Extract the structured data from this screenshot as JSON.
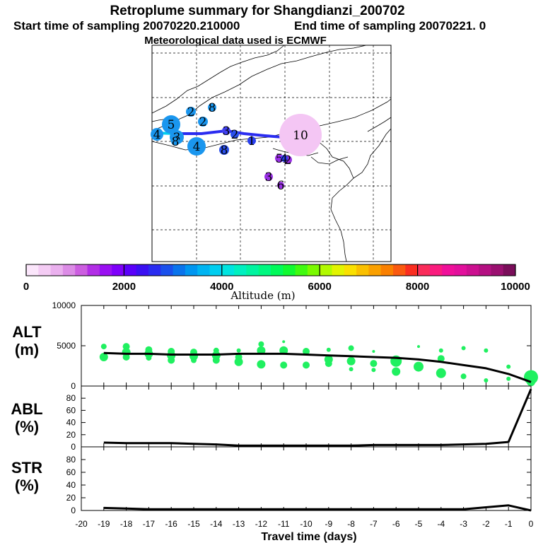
{
  "title": {
    "line1": "Retroplume summary for Shangdianzi_200702",
    "line2_start": "Start time of sampling 20070220.210000",
    "line2_end": "End time of sampling 20070221.     0",
    "line3": "Meteorological data used is ECMWF"
  },
  "colorbar": {
    "label": "Altitude (m)",
    "ticks": [
      "0",
      "2000",
      "4000",
      "6000",
      "8000",
      "10000"
    ],
    "colors": [
      "#fbe6fb",
      "#f4ccf4",
      "#eab0ee",
      "#dc8ce6",
      "#cc5ee0",
      "#b22ee6",
      "#9a10f2",
      "#7e00fa",
      "#5a00fa",
      "#3a10f2",
      "#2a2cf0",
      "#1a50ec",
      "#0a74ec",
      "#0096f0",
      "#00b4f2",
      "#00cef0",
      "#00e4e0",
      "#00f0c0",
      "#00f4a0",
      "#00f880",
      "#00fa5a",
      "#10fa30",
      "#40fa10",
      "#7afa00",
      "#b2fa00",
      "#e2f400",
      "#fae000",
      "#fac000",
      "#faa000",
      "#fa8000",
      "#fa5a10",
      "#fa2e20",
      "#fa2c5a",
      "#fa1c7e",
      "#f0109a",
      "#e2109c",
      "#cc1090",
      "#b41082",
      "#9a1070",
      "#7a0e5a"
    ]
  },
  "map_labels": [
    {
      "text": "5",
      "color": "#1a96ee",
      "r": 13
    },
    {
      "text": "4",
      "color": "#1a96ee",
      "r": 13
    },
    {
      "text": "3",
      "color": "#1a96ee",
      "r": 10
    },
    {
      "text": "8",
      "color": "#1a96ee",
      "r": 6
    },
    {
      "text": "2",
      "color": "#1a96ee",
      "r": 7
    },
    {
      "text": "2",
      "color": "#1a96ee",
      "r": 7
    },
    {
      "text": "8",
      "color": "#1a96ee",
      "r": 6
    },
    {
      "text": "4",
      "color": "#1a96ee",
      "r": 9
    },
    {
      "text": "8",
      "color": "#2a50ec",
      "r": 7
    },
    {
      "text": "2",
      "color": "#2a50ec",
      "r": 6
    },
    {
      "text": "3",
      "color": "#4040f0",
      "r": 6
    },
    {
      "text": "1",
      "color": "#2a40f0",
      "r": 6
    },
    {
      "text": "1",
      "color": "#6a20f0",
      "r": 6
    },
    {
      "text": "10",
      "color": "#f4c6f4",
      "r": 30
    },
    {
      "text": "5",
      "color": "#9a30e6",
      "r": 6
    },
    {
      "text": "2",
      "color": "#9a30e6",
      "r": 6
    },
    {
      "text": "4",
      "color": "#2a40f0",
      "r": 5
    },
    {
      "text": "3",
      "color": "#9a30e6",
      "r": 6
    },
    {
      "text": "6",
      "color": "#9a30e6",
      "r": 5
    }
  ],
  "chart_data": [
    {
      "type": "line",
      "panel": "ALT",
      "ylabel": "ALT (m)",
      "x": [
        0,
        -1,
        -2,
        -3,
        -4,
        -5,
        -6,
        -7,
        -8,
        -9,
        -10,
        -11,
        -12,
        -13,
        -14,
        -15,
        -16,
        -17,
        -18,
        -19
      ],
      "values": [
        500,
        1500,
        2200,
        2600,
        3000,
        3300,
        3500,
        3600,
        3700,
        3800,
        3900,
        4000,
        4000,
        4000,
        3900,
        3900,
        3900,
        4000,
        4000,
        4100
      ],
      "xlim": [
        -20,
        0
      ],
      "ylim": [
        0,
        10000
      ],
      "yticks": [
        "0",
        "5000",
        "10000"
      ],
      "scatter": {
        "x": [
          -19,
          -19,
          -18,
          -18,
          -18,
          -17,
          -17,
          -17,
          -16,
          -16,
          -16,
          -15,
          -15,
          -15,
          -14,
          -14,
          -14,
          -13,
          -13,
          -13,
          -12,
          -12,
          -12,
          -11,
          -11,
          -11,
          -10,
          -10,
          -9,
          -9,
          -9,
          -8,
          -8,
          -8,
          -7,
          -7,
          -7,
          -6,
          -6,
          -5,
          -5,
          -4,
          -4,
          -4,
          -3,
          -3,
          -2,
          -2,
          -1,
          -1,
          0,
          0
        ],
        "y": [
          4900,
          3600,
          4900,
          4200,
          3600,
          4500,
          4000,
          3500,
          4300,
          3800,
          3200,
          4200,
          3700,
          3200,
          4400,
          3800,
          3200,
          4400,
          3600,
          3000,
          5200,
          4400,
          2700,
          5500,
          4400,
          2600,
          4300,
          2600,
          4500,
          3300,
          2800,
          4700,
          3100,
          2100,
          4300,
          2800,
          2000,
          3100,
          1800,
          4900,
          2400,
          4400,
          3400,
          1600,
          4700,
          1200,
          4400,
          700,
          2400,
          900,
          1100,
          500
        ],
        "sizes": [
          4,
          6,
          5,
          6,
          5,
          5,
          6,
          4,
          5,
          6,
          5,
          5,
          6,
          4,
          4,
          6,
          5,
          3,
          5,
          6,
          4,
          6,
          6,
          2,
          6,
          5,
          5,
          5,
          3,
          6,
          5,
          4,
          6,
          3,
          2,
          5,
          3,
          8,
          6,
          2,
          7,
          3,
          5,
          7,
          3,
          4,
          3,
          3,
          3,
          3,
          10,
          6
        ]
      }
    },
    {
      "type": "line",
      "panel": "ABL",
      "ylabel": "ABL (%)",
      "x": [
        0,
        -1,
        -2,
        -3,
        -4,
        -5,
        -6,
        -7,
        -8,
        -9,
        -10,
        -11,
        -12,
        -13,
        -14,
        -15,
        -16,
        -17,
        -18,
        -19
      ],
      "values": [
        95,
        8,
        5,
        4,
        3,
        3,
        3,
        3,
        2,
        2,
        2,
        2,
        2,
        2,
        4,
        5,
        6,
        6,
        6,
        7
      ],
      "xlim": [
        -20,
        0
      ],
      "ylim": [
        0,
        100
      ],
      "yticks": [
        "0",
        "20",
        "40",
        "60",
        "80"
      ]
    },
    {
      "type": "line",
      "panel": "STR",
      "ylabel": "STR (%)",
      "x": [
        0,
        -1,
        -2,
        -3,
        -4,
        -5,
        -6,
        -7,
        -8,
        -9,
        -10,
        -11,
        -12,
        -13,
        -14,
        -15,
        -16,
        -17,
        -18,
        -19
      ],
      "values": [
        0,
        8,
        5,
        2,
        2,
        2,
        2,
        2,
        2,
        2,
        2,
        2,
        2,
        2,
        2,
        2,
        2,
        2,
        3,
        4
      ],
      "xlim": [
        -20,
        0
      ],
      "ylim": [
        0,
        100
      ],
      "yticks": [
        "0",
        "20",
        "40",
        "60",
        "80"
      ]
    }
  ],
  "x_axis": {
    "label": "Travel time (days)",
    "ticks": [
      "-20",
      "-19",
      "-18",
      "-17",
      "-16",
      "-15",
      "-14",
      "-13",
      "-12",
      "-11",
      "-10",
      "-9",
      "-8",
      "-7",
      "-6",
      "-5",
      "-4",
      "-3",
      "-2",
      "-1",
      "0"
    ]
  },
  "colors": {
    "alt_points": "#20f060",
    "map_track": "#2a2cf0",
    "map_track_west": "#00cef0"
  }
}
